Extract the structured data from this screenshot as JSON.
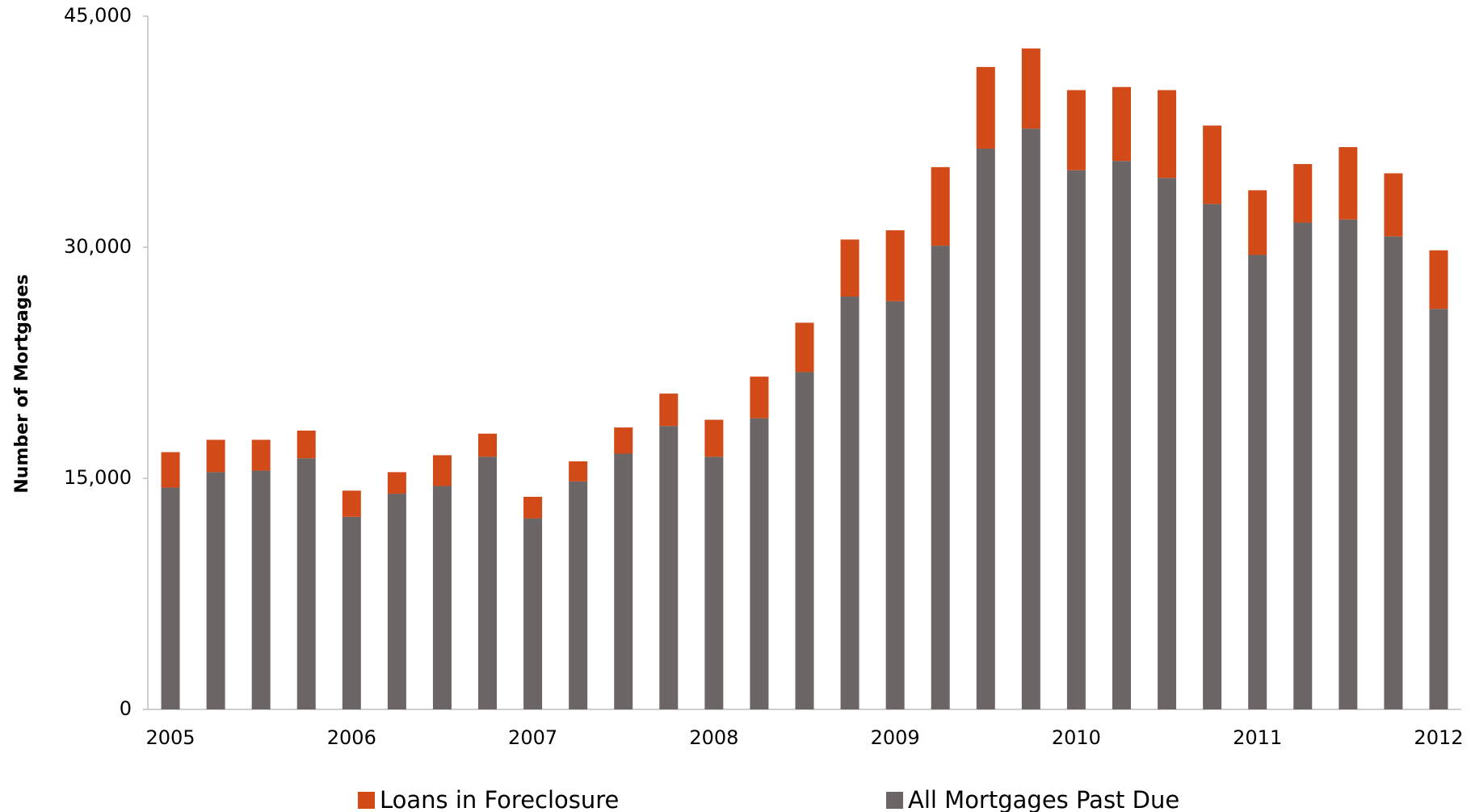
{
  "chart_data": {
    "type": "stacked_bar",
    "y_label": "Number of Mortgages",
    "categories": [
      "2005",
      null,
      null,
      null,
      "2006",
      null,
      null,
      null,
      "2007",
      null,
      null,
      null,
      "2008",
      null,
      null,
      null,
      "2009",
      null,
      null,
      null,
      "2010",
      null,
      null,
      null,
      "2011",
      null,
      null,
      null,
      "2012"
    ],
    "series": [
      {
        "name": "All Mortgages Past Due",
        "color": "#6b6665",
        "values": [
          14400,
          15400,
          15500,
          16300,
          12500,
          14000,
          14500,
          16400,
          12400,
          14800,
          16600,
          18400,
          16400,
          18900,
          21900,
          26800,
          26500,
          30100,
          36400,
          37700,
          35000,
          35600,
          34500,
          32800,
          29500,
          31600,
          31800,
          30700,
          26000
        ]
      },
      {
        "name": "Loans in Foreclosure",
        "color": "#d24a17",
        "values": [
          2300,
          2100,
          2000,
          1800,
          1700,
          1400,
          2000,
          1500,
          1400,
          1300,
          1700,
          2100,
          2400,
          2700,
          3200,
          3700,
          4600,
          5100,
          5300,
          5200,
          5200,
          4800,
          5700,
          5100,
          4200,
          3800,
          4700,
          4100,
          3800
        ]
      }
    ],
    "legend_order": [
      1,
      0
    ],
    "ylim": [
      0,
      45000
    ],
    "yticks": [
      {
        "value": 0,
        "label": "0"
      },
      {
        "value": 15000,
        "label": "15,000"
      },
      {
        "value": 30000,
        "label": "30,000"
      },
      {
        "value": 45000,
        "label": "45,000"
      }
    ],
    "grid": false
  }
}
